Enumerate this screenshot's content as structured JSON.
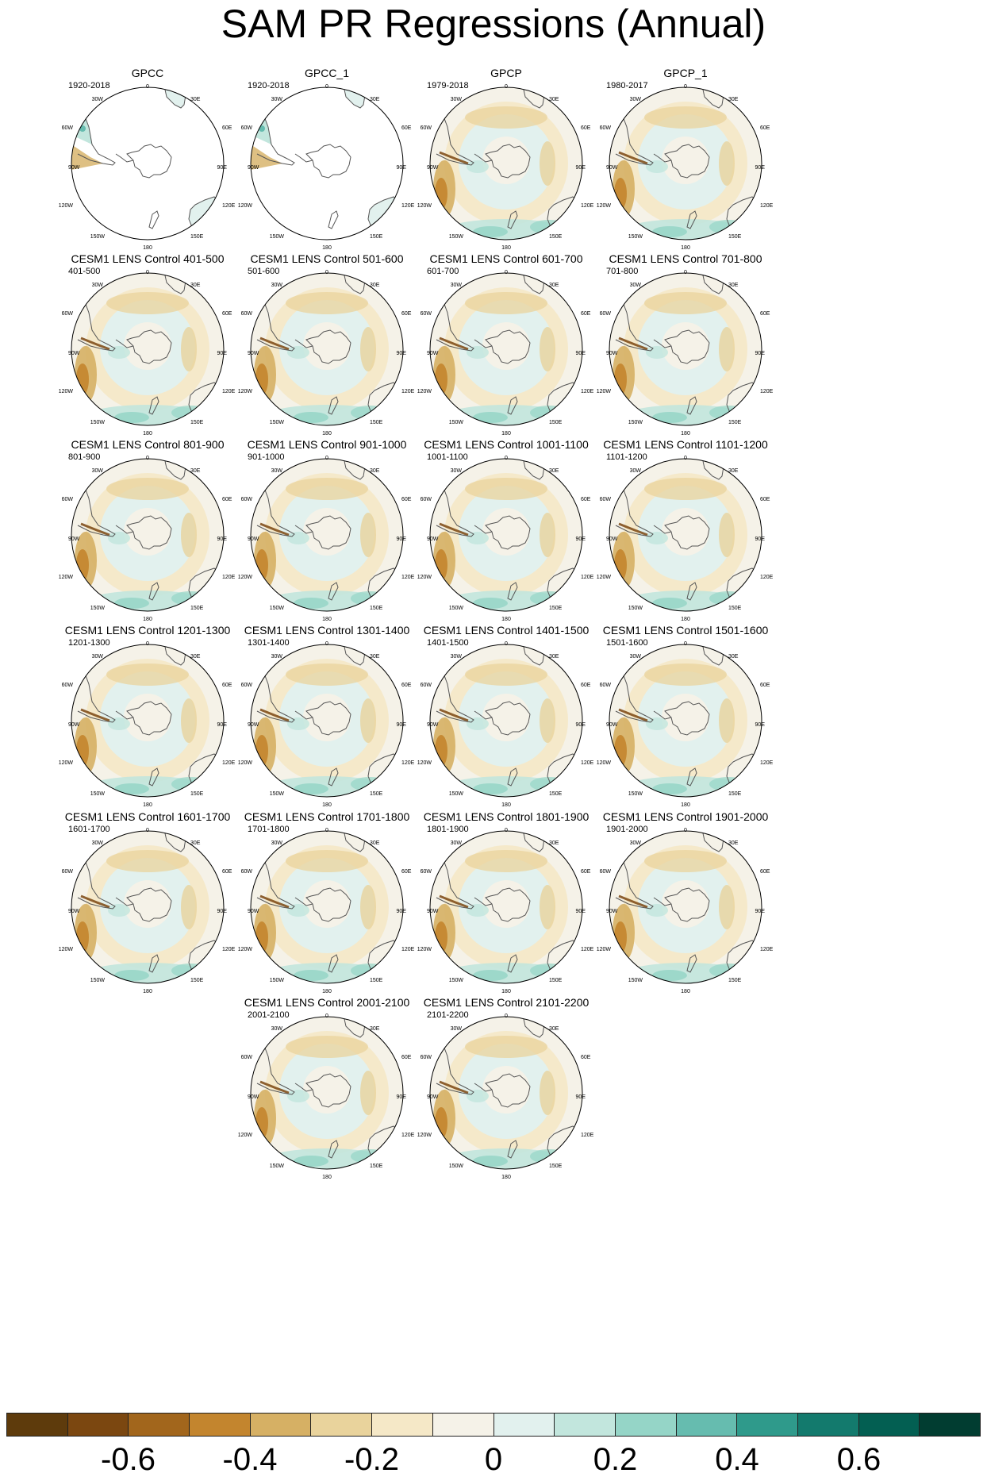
{
  "title": "SAM PR Regressions (Annual)",
  "lon_labels": [
    "0",
    "30E",
    "60E",
    "90E",
    "120E",
    "150E",
    "180",
    "150W",
    "120W",
    "90W",
    "60W",
    "30W"
  ],
  "panels": [
    {
      "title": "GPCC",
      "period": "1920-2018",
      "kind": "land"
    },
    {
      "title": "GPCC_1",
      "period": "1920-2018",
      "kind": "land"
    },
    {
      "title": "GPCP",
      "period": "1979-2018",
      "kind": "full"
    },
    {
      "title": "GPCP_1",
      "period": "1980-2017",
      "kind": "full"
    },
    {
      "title": "CESM1 LENS Control 401-500",
      "period": "401-500",
      "kind": "full"
    },
    {
      "title": "CESM1 LENS Control 501-600",
      "period": "501-600",
      "kind": "full"
    },
    {
      "title": "CESM1 LENS Control 601-700",
      "period": "601-700",
      "kind": "full"
    },
    {
      "title": "CESM1 LENS Control 701-800",
      "period": "701-800",
      "kind": "full"
    },
    {
      "title": "CESM1 LENS Control 801-900",
      "period": "801-900",
      "kind": "full"
    },
    {
      "title": "CESM1 LENS Control 901-1000",
      "period": "901-1000",
      "kind": "full"
    },
    {
      "title": "CESM1 LENS Control 1001-1100",
      "period": "1001-1100",
      "kind": "full"
    },
    {
      "title": "CESM1 LENS Control 1101-1200",
      "period": "1101-1200",
      "kind": "full"
    },
    {
      "title": "CESM1 LENS Control 1201-1300",
      "period": "1201-1300",
      "kind": "full"
    },
    {
      "title": "CESM1 LENS Control 1301-1400",
      "period": "1301-1400",
      "kind": "full"
    },
    {
      "title": "CESM1 LENS Control 1401-1500",
      "period": "1401-1500",
      "kind": "full"
    },
    {
      "title": "CESM1 LENS Control 1501-1600",
      "period": "1501-1600",
      "kind": "full"
    },
    {
      "title": "CESM1 LENS Control 1601-1700",
      "period": "1601-1700",
      "kind": "full"
    },
    {
      "title": "CESM1 LENS Control 1701-1800",
      "period": "1701-1800",
      "kind": "full"
    },
    {
      "title": "CESM1 LENS Control 1801-1900",
      "period": "1801-1900",
      "kind": "full"
    },
    {
      "title": "CESM1 LENS Control 1901-2000",
      "period": "1901-2000",
      "kind": "full"
    },
    {
      "title": "CESM1 LENS Control 2001-2100",
      "period": "2001-2100",
      "kind": "full"
    },
    {
      "title": "CESM1 LENS Control 2101-2200",
      "period": "2101-2200",
      "kind": "full"
    }
  ],
  "colorbar": {
    "colors": [
      "#5e3b0c",
      "#7b4710",
      "#a2661c",
      "#c3852e",
      "#d6b064",
      "#e9d39c",
      "#f5e8c7",
      "#f5f2e8",
      "#e2f1ee",
      "#c2e6dd",
      "#95d5c7",
      "#66bcaf",
      "#2f9a8b",
      "#137a6d",
      "#035f52",
      "#013d31"
    ],
    "tick_labels": [
      "-0.6",
      "-0.4",
      "-0.2",
      "0",
      "0.2",
      "0.4",
      "0.6"
    ],
    "tick_values": [
      -0.6,
      -0.4,
      -0.2,
      0,
      0.2,
      0.4,
      0.6
    ],
    "range": [
      -0.8,
      0.8
    ]
  }
}
